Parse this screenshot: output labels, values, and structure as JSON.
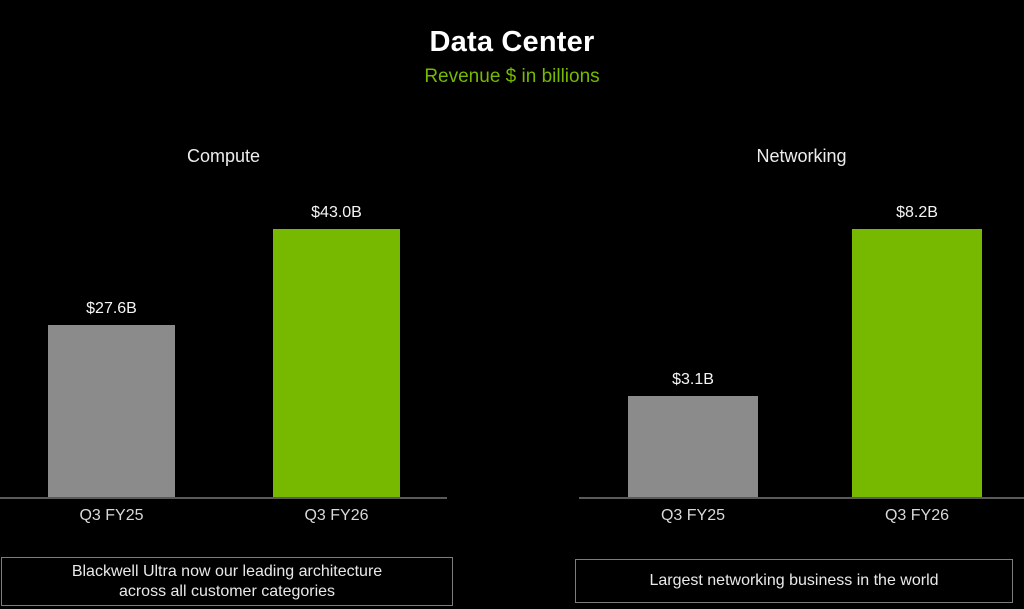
{
  "title": "Data Center",
  "subtitle": "Revenue $ in billions",
  "colors": {
    "background": "#000000",
    "accent_green": "#76b900",
    "bar_prior": "#8b8b8b",
    "axis_line": "#5a5a5a",
    "title_text": "#ffffff"
  },
  "chart_data": [
    {
      "type": "bar",
      "title": "Compute",
      "categories": [
        "Q3 FY25",
        "Q3 FY26"
      ],
      "values": [
        27.6,
        43.0
      ],
      "value_labels": [
        "$27.6B",
        "$43.0B"
      ],
      "series_colors": [
        "#8b8b8b",
        "#76b900"
      ],
      "ylabel": "Revenue $ in billions",
      "ylim": [
        0,
        43.0
      ],
      "grid": false,
      "legend": "none",
      "caption": "Blackwell Ultra now our leading architecture across all customer categories"
    },
    {
      "type": "bar",
      "title": "Networking",
      "categories": [
        "Q3 FY25",
        "Q3 FY26"
      ],
      "values": [
        3.1,
        8.2
      ],
      "value_labels": [
        "$3.1B",
        "$8.2B"
      ],
      "series_colors": [
        "#8b8b8b",
        "#76b900"
      ],
      "ylabel": "Revenue $ in billions",
      "ylim": [
        0,
        8.2
      ],
      "grid": false,
      "legend": "none",
      "caption": "Largest networking business in the world"
    }
  ]
}
